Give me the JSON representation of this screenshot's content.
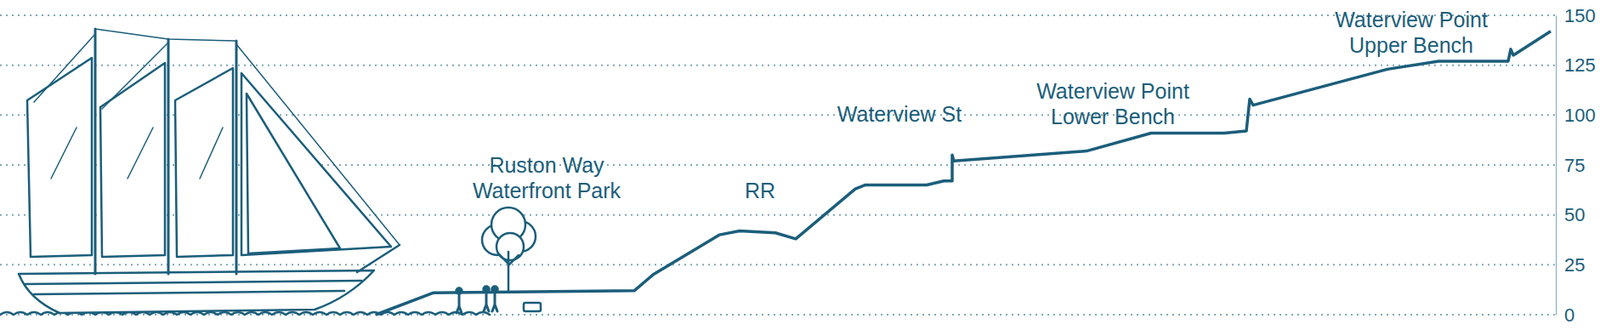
{
  "chart_data": {
    "type": "line",
    "x": [
      442,
      510,
      746,
      768,
      846,
      870,
      912,
      936,
      1006,
      1018,
      1090,
      1110,
      1120,
      1120,
      1122,
      1278,
      1354,
      1440,
      1466,
      1470,
      1474,
      1632,
      1692,
      1774,
      1777,
      1780,
      1824
    ],
    "values": [
      0,
      11,
      12,
      20,
      40,
      42,
      41,
      38,
      63,
      65,
      65,
      67,
      67,
      80,
      77,
      82,
      91,
      91,
      92,
      108,
      105,
      123,
      127,
      127,
      133,
      130,
      142
    ],
    "color": "#1b5e7b",
    "xlim": [
      0,
      1830
    ],
    "ylim": [
      0,
      150
    ],
    "yticks": [
      0,
      25,
      50,
      75,
      100,
      125,
      150
    ],
    "grid": true,
    "tick_labels": "y",
    "annotations": [
      [
        "Ruston Way",
        "Waterfront Park"
      ],
      [
        "RR"
      ],
      [
        "Waterview St"
      ],
      [
        "Waterview Point",
        "Lower Bench"
      ],
      [
        "Waterview Point",
        "Upper Bench"
      ]
    ]
  }
}
